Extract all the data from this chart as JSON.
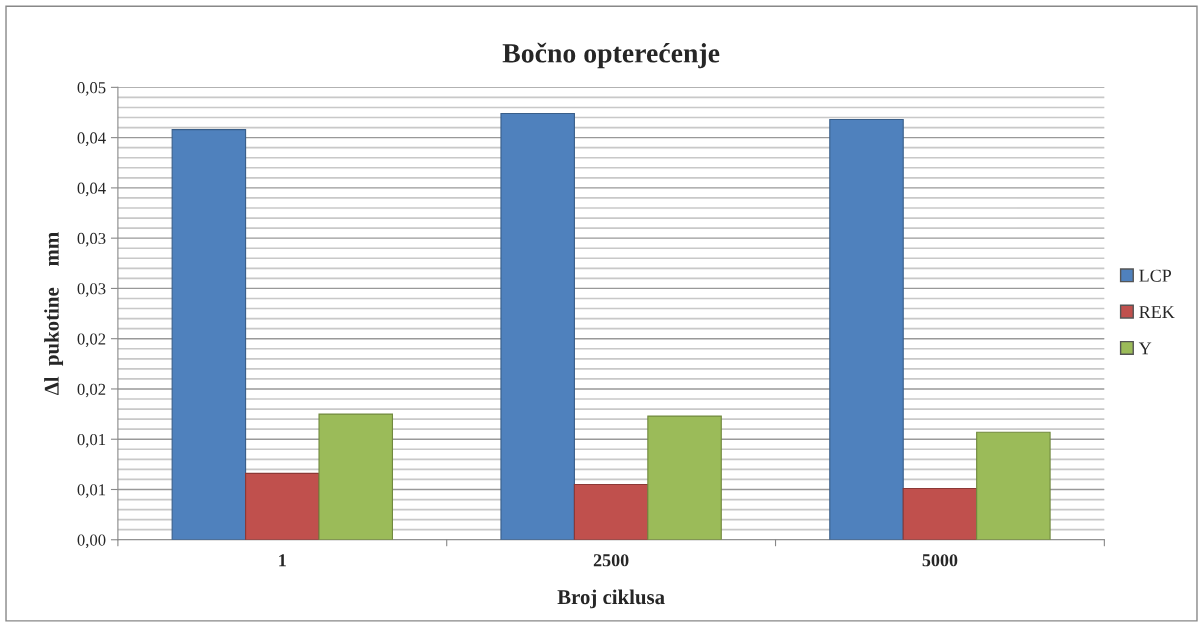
{
  "chart_data": {
    "type": "bar",
    "title": "Bočno opterećenje",
    "xlabel": "Broj ciklusa",
    "ylabel": "Δl  pukotine    mm",
    "categories": [
      "1",
      "2500",
      "5000"
    ],
    "series": [
      {
        "name": "LCP",
        "color": "#4f81bd",
        "values": [
          0.0408,
          0.0424,
          0.0418
        ]
      },
      {
        "name": "REK",
        "color": "#c0504d",
        "values": [
          0.0066,
          0.0055,
          0.0051
        ]
      },
      {
        "name": "Y",
        "color": "#9bbb59",
        "values": [
          0.0125,
          0.0123,
          0.0107
        ]
      }
    ],
    "ylim": [
      0,
      0.045
    ],
    "yticks": [
      {
        "value": 0,
        "label": "0,00"
      },
      {
        "value": 0.001,
        "label": null
      },
      {
        "value": 0.002,
        "label": null
      },
      {
        "value": 0.003,
        "label": null
      },
      {
        "value": 0.004,
        "label": null
      },
      {
        "value": 0.005,
        "label": "0,01"
      },
      {
        "value": 0.006,
        "label": null
      },
      {
        "value": 0.007,
        "label": null
      },
      {
        "value": 0.008,
        "label": null
      },
      {
        "value": 0.009,
        "label": null
      },
      {
        "value": 0.01,
        "label": "0,01"
      },
      {
        "value": 0.011,
        "label": null
      },
      {
        "value": 0.012,
        "label": null
      },
      {
        "value": 0.013,
        "label": null
      },
      {
        "value": 0.014,
        "label": null
      },
      {
        "value": 0.015,
        "label": "0,02"
      },
      {
        "value": 0.016,
        "label": null
      },
      {
        "value": 0.017,
        "label": null
      },
      {
        "value": 0.018,
        "label": null
      },
      {
        "value": 0.019,
        "label": null
      },
      {
        "value": 0.02,
        "label": "0,02"
      },
      {
        "value": 0.021,
        "label": null
      },
      {
        "value": 0.022,
        "label": null
      },
      {
        "value": 0.023,
        "label": null
      },
      {
        "value": 0.024,
        "label": null
      },
      {
        "value": 0.025,
        "label": "0,03"
      },
      {
        "value": 0.026,
        "label": null
      },
      {
        "value": 0.027,
        "label": null
      },
      {
        "value": 0.028,
        "label": null
      },
      {
        "value": 0.029,
        "label": null
      },
      {
        "value": 0.03,
        "label": "0,03"
      },
      {
        "value": 0.031,
        "label": null
      },
      {
        "value": 0.032,
        "label": null
      },
      {
        "value": 0.033,
        "label": null
      },
      {
        "value": 0.034,
        "label": null
      },
      {
        "value": 0.035,
        "label": "0,04"
      },
      {
        "value": 0.036,
        "label": null
      },
      {
        "value": 0.037,
        "label": null
      },
      {
        "value": 0.038,
        "label": null
      },
      {
        "value": 0.039,
        "label": null
      },
      {
        "value": 0.04,
        "label": "0,04"
      },
      {
        "value": 0.041,
        "label": null
      },
      {
        "value": 0.042,
        "label": null
      },
      {
        "value": 0.043,
        "label": null
      },
      {
        "value": 0.044,
        "label": null
      },
      {
        "value": 0.045,
        "label": "0,05"
      }
    ],
    "grid": "y",
    "legend": "right"
  }
}
